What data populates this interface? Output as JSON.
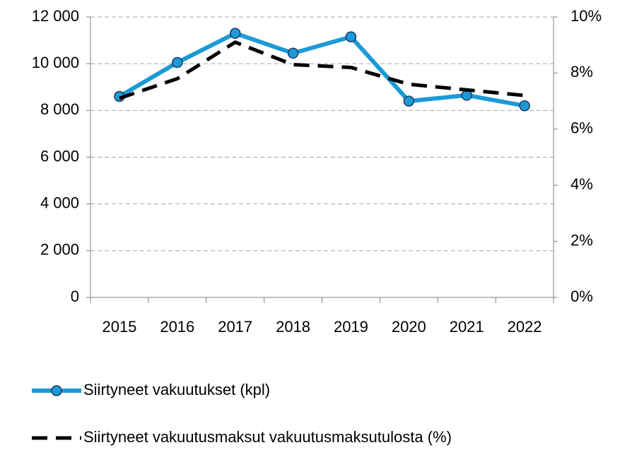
{
  "chart_data": {
    "type": "line",
    "categories": [
      "2015",
      "2016",
      "2017",
      "2018",
      "2019",
      "2020",
      "2021",
      "2022"
    ],
    "series": [
      {
        "name": "Siirtyneet vakuutukset (kpl)",
        "color": "#1b9ad6",
        "marker": "circle",
        "values": [
          8600,
          10050,
          11300,
          10450,
          11150,
          8400,
          8650,
          8200
        ]
      },
      {
        "name": "Siirtyneet vakuutusmaksut vakuutusmaksutulosta (%)",
        "color": "#000000",
        "dash": true,
        "axis": "y2",
        "values": [
          7.1,
          7.8,
          9.1,
          8.3,
          8.2,
          7.6,
          7.4,
          7.2
        ]
      }
    ],
    "ylim": [
      0,
      12000
    ],
    "yticks": [
      0,
      {
        "value": 2000,
        "label": "2 000"
      },
      {
        "value": 4000,
        "label": "4 000"
      },
      {
        "value": 6000,
        "label": "6 000"
      },
      {
        "value": 8000,
        "label": "8 000"
      },
      {
        "value": 10000,
        "label": "10 000"
      },
      {
        "value": 12000,
        "label": "12 000"
      }
    ],
    "y2lim": [
      0,
      10
    ],
    "y2ticks": [
      {
        "value": 0,
        "label": "0%"
      },
      {
        "value": 2,
        "label": "2%"
      },
      {
        "value": 4,
        "label": "4%"
      },
      {
        "value": 6,
        "label": "6%"
      },
      {
        "value": 8,
        "label": "8%"
      },
      {
        "value": 10,
        "label": "10%"
      }
    ],
    "grid": true,
    "legend": "bottom"
  }
}
